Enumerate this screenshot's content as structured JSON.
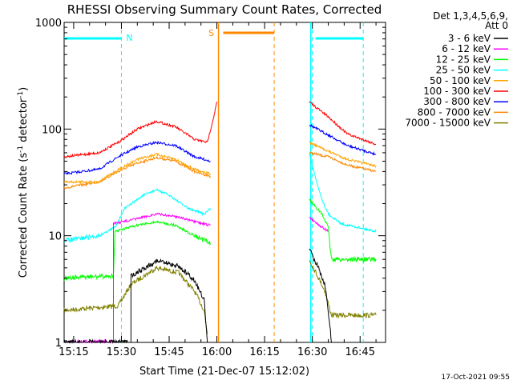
{
  "chart_data": {
    "type": "line",
    "title": "RHESSI Observing Summary Count Rates, Corrected",
    "xlabel": "Start Time (21-Dec-07 15:12:02)",
    "ylabel_main": "Corrected Count Rate (s",
    "ylabel_sup1": "-1",
    "ylabel_mid": " detector",
    "ylabel_sup2": "-1",
    "ylabel_end": ")",
    "y_scale": "log",
    "ylim": [
      1,
      1000
    ],
    "xlim_minutes": [
      -3,
      98
    ],
    "x_ticks": [
      {
        "m": 0,
        "label": "15:15"
      },
      {
        "m": 15,
        "label": "15:30"
      },
      {
        "m": 30,
        "label": "15:45"
      },
      {
        "m": 45,
        "label": "16:00"
      },
      {
        "m": 60,
        "label": "16:15"
      },
      {
        "m": 75,
        "label": "16:30"
      },
      {
        "m": 90,
        "label": "16:45"
      }
    ],
    "y_ticks": [
      {
        "v": 1,
        "label": "1"
      },
      {
        "v": 10,
        "label": "10"
      },
      {
        "v": 100,
        "label": "100"
      },
      {
        "v": 1000,
        "label": "1000"
      }
    ],
    "legend_header": [
      "Det 1,3,4,5,6,9,",
      "Att 0"
    ],
    "legend_position": "right",
    "series": [
      {
        "name": "3 - 6 keV",
        "color": "#000000",
        "segments": [
          [
            [
              -3,
              1.0
            ],
            [
              18,
              1.0
            ],
            [
              18,
              4.2
            ],
            [
              26,
              5.8
            ],
            [
              33,
              5.2
            ],
            [
              38,
              3.8
            ],
            [
              41,
              2.5
            ],
            [
              42,
              1.0
            ]
          ],
          [
            [
              74,
              7.5
            ],
            [
              77,
              5.0
            ],
            [
              79,
              3.4
            ],
            [
              80,
              2.0
            ],
            [
              81,
              1.0
            ]
          ]
        ]
      },
      {
        "name": "6 - 12 keV",
        "color": "#ff00ff",
        "segments": [
          [
            [
              -3,
              1.0
            ],
            [
              12.5,
              1.0
            ],
            [
              12.5,
              13.0
            ],
            [
              18,
              14.0
            ],
            [
              26,
              16.0
            ],
            [
              33,
              15.0
            ],
            [
              38,
              13.5
            ],
            [
              43,
              12.5
            ]
          ],
          [
            [
              74,
              15.0
            ],
            [
              78,
              12.0
            ],
            [
              80,
              11.0
            ]
          ]
        ]
      },
      {
        "name": "12 - 25 keV",
        "color": "#00ff00",
        "segments": [
          [
            [
              -3,
              4.0
            ],
            [
              12.5,
              4.2
            ],
            [
              13,
              11.0
            ],
            [
              20,
              12.5
            ],
            [
              26,
              13.5
            ],
            [
              32,
              12.5
            ],
            [
              38,
              10.0
            ],
            [
              43,
              8.5
            ]
          ],
          [
            [
              74,
              22.0
            ],
            [
              78,
              16.0
            ],
            [
              80,
              12.0
            ],
            [
              81,
              6.0
            ],
            [
              95,
              6.0
            ]
          ]
        ]
      },
      {
        "name": "25 - 50 keV",
        "color": "#00ffff",
        "segments": [
          [
            [
              -3,
              9.0
            ],
            [
              8,
              10.0
            ],
            [
              13,
              12.0
            ],
            [
              16,
              18.0
            ],
            [
              22,
              24.0
            ],
            [
              26,
              27.0
            ],
            [
              30,
              24.0
            ],
            [
              36,
              18.0
            ],
            [
              41,
              16.0
            ],
            [
              43,
              18.0
            ]
          ],
          [
            [
              74,
              60.0
            ],
            [
              76,
              35.0
            ],
            [
              78,
              22.0
            ],
            [
              80,
              16.0
            ],
            [
              84,
              13.0
            ],
            [
              95,
              11.0
            ]
          ]
        ]
      },
      {
        "name": "50 - 100 keV",
        "color": "#ffa500",
        "segments": [
          [
            [
              -3,
              32.0
            ],
            [
              8,
              32.0
            ],
            [
              13,
              40.0
            ],
            [
              20,
              52.0
            ],
            [
              26,
              58.0
            ],
            [
              32,
              52.0
            ],
            [
              38,
              42.0
            ],
            [
              43,
              38.0
            ]
          ],
          [
            [
              74,
              75.0
            ],
            [
              80,
              62.0
            ],
            [
              86,
              52.0
            ],
            [
              95,
              45.0
            ]
          ]
        ]
      },
      {
        "name": "100 - 300 keV",
        "color": "#ff0000",
        "segments": [
          [
            [
              -3,
              55.0
            ],
            [
              8,
              60.0
            ],
            [
              14,
              75.0
            ],
            [
              20,
              100.0
            ],
            [
              26,
              118.0
            ],
            [
              32,
              105.0
            ],
            [
              38,
              80.0
            ],
            [
              42,
              75.0
            ],
            [
              44,
              130.0
            ],
            [
              45,
              180.0
            ]
          ],
          [
            [
              74,
              180.0
            ],
            [
              80,
              130.0
            ],
            [
              86,
              90.0
            ],
            [
              95,
              72.0
            ]
          ]
        ]
      },
      {
        "name": "300 - 800 keV",
        "color": "#0000ff",
        "segments": [
          [
            [
              -3,
              38.0
            ],
            [
              8,
              42.0
            ],
            [
              14,
              55.0
            ],
            [
              20,
              68.0
            ],
            [
              26,
              75.0
            ],
            [
              32,
              70.0
            ],
            [
              38,
              55.0
            ],
            [
              43,
              50.0
            ]
          ],
          [
            [
              74,
              110.0
            ],
            [
              80,
              88.0
            ],
            [
              86,
              70.0
            ],
            [
              95,
              58.0
            ]
          ]
        ]
      },
      {
        "name": "800 - 7000 keV",
        "color": "#ff8800",
        "segments": [
          [
            [
              -3,
              28.0
            ],
            [
              8,
              32.0
            ],
            [
              14,
              40.0
            ],
            [
              20,
              48.0
            ],
            [
              26,
              54.0
            ],
            [
              32,
              50.0
            ],
            [
              38,
              40.0
            ],
            [
              43,
              36.0
            ]
          ],
          [
            [
              74,
              60.0
            ],
            [
              80,
              55.0
            ],
            [
              86,
              46.0
            ],
            [
              95,
              40.0
            ]
          ]
        ]
      },
      {
        "name": "7000 - 15000 keV",
        "color": "#808000",
        "segments": [
          [
            [
              -3,
              2.0
            ],
            [
              14,
              2.2
            ],
            [
              18,
              3.5
            ],
            [
              26,
              5.0
            ],
            [
              33,
              4.5
            ],
            [
              38,
              3.0
            ],
            [
              41,
              2.0
            ],
            [
              42,
              1.2
            ]
          ],
          [
            [
              74,
              6.0
            ],
            [
              77,
              4.0
            ],
            [
              79,
              3.0
            ],
            [
              81,
              1.8
            ],
            [
              95,
              1.8
            ]
          ]
        ]
      }
    ],
    "annotations": {
      "saa_label": "N",
      "saa_color": "#00ffff",
      "saa_vlines": [
        15,
        75,
        91
      ],
      "saa_solid": [
        74.5
      ],
      "saa_bars": [
        [
          -3,
          15
        ],
        [
          76,
          91
        ]
      ],
      "night_label": "S",
      "night_color": "#ff8800",
      "night_solid": [
        45.5
      ],
      "night_dashed": [
        63
      ],
      "night_bar": [
        47,
        63
      ]
    }
  },
  "footer_date": "17-Oct-2021 09:55"
}
